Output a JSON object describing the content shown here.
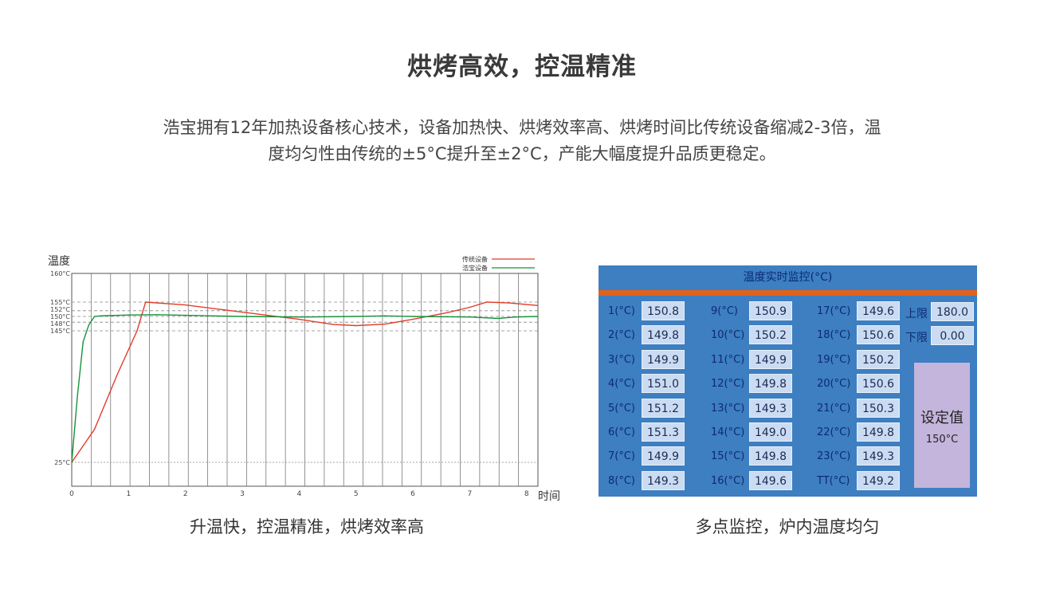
{
  "header": {
    "title": "烘烤高效，控温精准",
    "desc_line1": "浩宝拥有12年加热设备核心技术，设备加热快、烘烤效率高、烘烤时间比传统设备缩减2-3倍，温",
    "desc_line2": "度均匀性由传统的±5°C提升至±2°C，产能大幅度提升品质更稳定。"
  },
  "captions": {
    "left": "升温快，控温精准，烘烤效率高",
    "right": "多点监控，炉内温度均匀"
  },
  "chart_data": {
    "type": "line",
    "ylabel": "温度",
    "xlabel": "时间",
    "y_ticks": [
      "160°C",
      "155°C",
      "152°C",
      "150°C",
      "148°C",
      "145°C",
      "25°C"
    ],
    "x_ticks": [
      "0",
      "1",
      "2",
      "3",
      "4",
      "5",
      "6",
      "7",
      "8"
    ],
    "xlim": [
      0,
      8.2
    ],
    "grid": "vertical",
    "legend_position": "top-right",
    "colors": {
      "传统设备": "#e23c2a",
      "浩宝设备": "#16913a"
    },
    "series": [
      {
        "name": "传统设备",
        "x": [
          0,
          0.4,
          0.8,
          1.15,
          1.3,
          2,
          3,
          4,
          4.6,
          5,
          5.5,
          6,
          6.6,
          7,
          7.3,
          7.7,
          8.2
        ],
        "y": [
          25,
          55,
          105,
          145,
          155,
          154,
          151.5,
          149,
          147.2,
          146.8,
          147.3,
          149,
          151.3,
          153.2,
          155,
          154.7,
          153.8
        ]
      },
      {
        "name": "浩宝设备",
        "x": [
          0,
          0.1,
          0.2,
          0.3,
          0.4,
          0.5,
          1,
          1.5,
          2,
          3,
          4,
          5,
          5.5,
          6,
          7,
          7.5,
          7.8,
          8.2
        ],
        "y": [
          25,
          85,
          135,
          147,
          150,
          150.2,
          150.5,
          150.6,
          150.4,
          150,
          149.8,
          150,
          150.2,
          150,
          149.8,
          149.3,
          149.8,
          150
        ]
      }
    ]
  },
  "panel": {
    "title": "温度实时监控(°C)",
    "columns": [
      [
        {
          "label": "1(°C)",
          "value": "150.8"
        },
        {
          "label": "2(°C)",
          "value": "149.8"
        },
        {
          "label": "3(°C)",
          "value": "149.9"
        },
        {
          "label": "4(°C)",
          "value": "151.0"
        },
        {
          "label": "5(°C)",
          "value": "151.2"
        },
        {
          "label": "6(°C)",
          "value": "151.3"
        },
        {
          "label": "7(°C)",
          "value": "149.9"
        },
        {
          "label": "8(°C)",
          "value": "149.3"
        }
      ],
      [
        {
          "label": "9(°C)",
          "value": "150.9"
        },
        {
          "label": "10(°C)",
          "value": "150.2"
        },
        {
          "label": "11(°C)",
          "value": "149.9"
        },
        {
          "label": "12(°C)",
          "value": "149.8"
        },
        {
          "label": "13(°C)",
          "value": "149.3"
        },
        {
          "label": "14(°C)",
          "value": "149.0"
        },
        {
          "label": "15(°C)",
          "value": "149.8"
        },
        {
          "label": "16(°C)",
          "value": "149.6"
        }
      ],
      [
        {
          "label": "17(°C)",
          "value": "149.6"
        },
        {
          "label": "18(°C)",
          "value": "150.6"
        },
        {
          "label": "19(°C)",
          "value": "150.2"
        },
        {
          "label": "20(°C)",
          "value": "150.6"
        },
        {
          "label": "21(°C)",
          "value": "150.3"
        },
        {
          "label": "22(°C)",
          "value": "149.8"
        },
        {
          "label": "23(°C)",
          "value": "149.3"
        },
        {
          "label": "TT(°C)",
          "value": "149.2"
        }
      ]
    ],
    "upper_label": "上限",
    "upper_value": "180.0",
    "lower_label": "下限",
    "lower_value": "0.00",
    "setpoint_label": "设定值",
    "setpoint_value": "150°C",
    "colors": {
      "panel_bg": "#3d7fc1",
      "accent_bar": "#e0621b",
      "setpoint_bg": "#c4b5dc"
    }
  }
}
